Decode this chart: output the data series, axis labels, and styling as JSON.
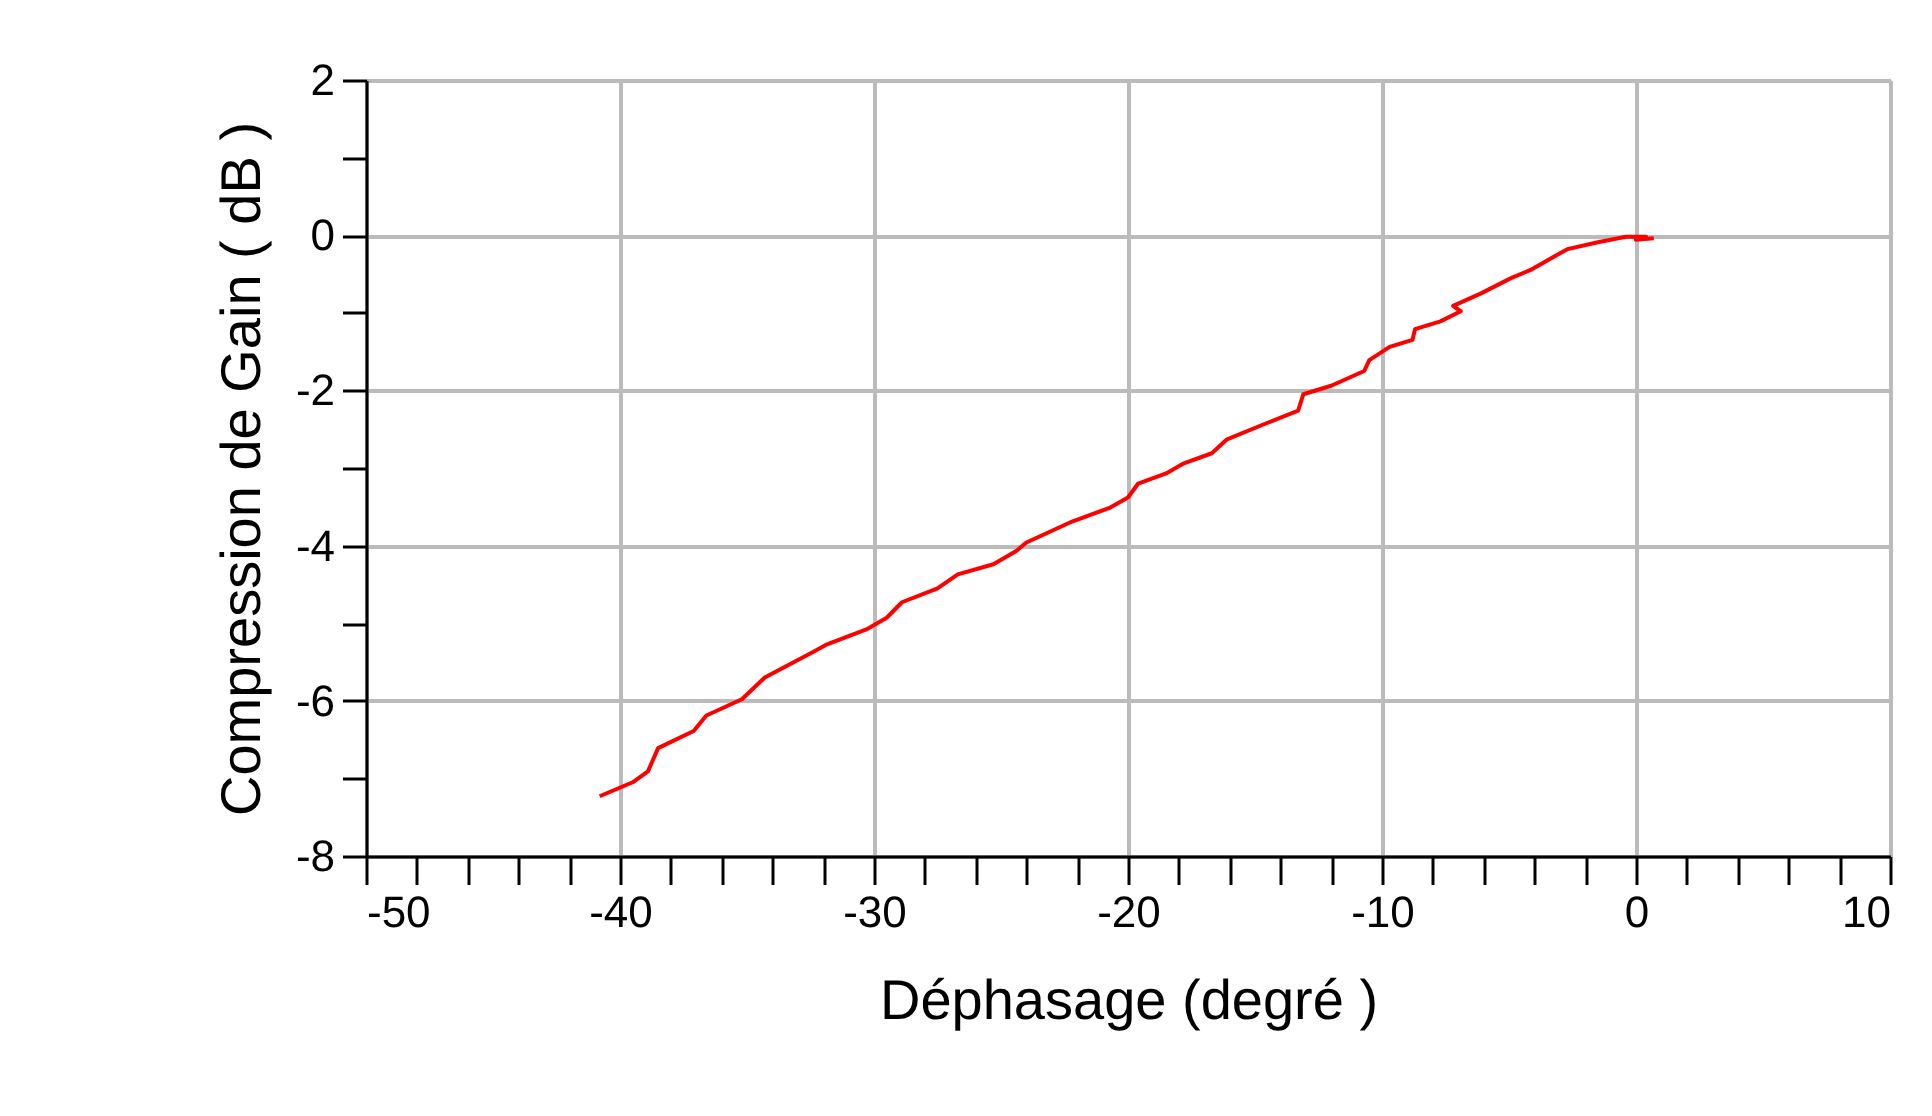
{
  "chart_data": {
    "type": "line",
    "xlabel": "Déphasage (degré )",
    "ylabel": "Compression de Gain ( dB )",
    "xlim": [
      -50,
      10
    ],
    "ylim": [
      -8,
      2
    ],
    "xticks": [
      -50,
      {
        "value": -48,
        "label": null
      },
      {
        "value": -46,
        "label": null
      },
      {
        "value": -44,
        "label": null
      },
      {
        "value": -42,
        "label": null
      },
      -40,
      {
        "value": -38,
        "label": null
      },
      {
        "value": -36,
        "label": null
      },
      {
        "value": -34,
        "label": null
      },
      {
        "value": -32,
        "label": null
      },
      -30,
      {
        "value": -28,
        "label": null
      },
      {
        "value": -26,
        "label": null
      },
      {
        "value": -24,
        "label": null
      },
      {
        "value": -22,
        "label": null
      },
      -20,
      {
        "value": -18,
        "label": null
      },
      {
        "value": -16,
        "label": null
      },
      {
        "value": -14,
        "label": null
      },
      {
        "value": -12,
        "label": null
      },
      -10,
      {
        "value": -8,
        "label": null
      },
      {
        "value": -6,
        "label": null
      },
      {
        "value": -4,
        "label": null
      },
      {
        "value": -2,
        "label": null
      },
      0,
      {
        "value": 2,
        "label": null
      },
      {
        "value": 4,
        "label": null
      },
      {
        "value": 6,
        "label": null
      },
      {
        "value": 8,
        "label": null
      },
      10
    ],
    "yticks": [
      -8,
      {
        "value": -7,
        "label": null
      },
      -6,
      {
        "value": -5,
        "label": null
      },
      -4,
      {
        "value": -3,
        "label": null
      },
      -2,
      {
        "value": -1,
        "label": null
      },
      0,
      {
        "value": 1,
        "label": null
      },
      2
    ],
    "grid": true,
    "marker": "none",
    "line_style": "solid",
    "series": [
      {
        "color": "#ff0000",
        "x": [
          -40.8,
          -39.5,
          -38.9,
          -38.5,
          -37.1,
          -36.6,
          -35.2,
          -34.3,
          -32.4,
          -31.9,
          -30.3,
          -29.5,
          -28.9,
          -27.5,
          -26.7,
          -25.3,
          -24.4,
          -24.0,
          -22.2,
          -20.7,
          -20.0,
          -19.6,
          -18.5,
          -17.8,
          -16.7,
          -16.1,
          -14.6,
          -13.3,
          -13.1,
          -12.0,
          -10.7,
          -10.5,
          -9.7,
          -8.8,
          -8.7,
          -7.7,
          -6.9,
          -7.2,
          -6.1,
          -4.9,
          -4.1,
          -3.2,
          -2.7,
          -1.5,
          -0.4,
          0.4,
          0.0,
          0.7
        ],
        "values": [
          -7.23,
          -7.05,
          -6.91,
          -6.61,
          -6.39,
          -6.19,
          -5.98,
          -5.7,
          -5.37,
          -5.28,
          -5.08,
          -4.93,
          -4.73,
          -4.55,
          -4.37,
          -4.24,
          -4.07,
          -3.96,
          -3.69,
          -3.51,
          -3.38,
          -3.2,
          -3.07,
          -2.94,
          -2.81,
          -2.63,
          -2.43,
          -2.26,
          -2.05,
          -1.94,
          -1.75,
          -1.61,
          -1.44,
          -1.35,
          -1.21,
          -1.11,
          -0.98,
          -0.91,
          -0.75,
          -0.55,
          -0.44,
          -0.27,
          -0.18,
          -0.09,
          -0.02,
          -0.02,
          -0.06,
          -0.04
        ]
      }
    ]
  }
}
